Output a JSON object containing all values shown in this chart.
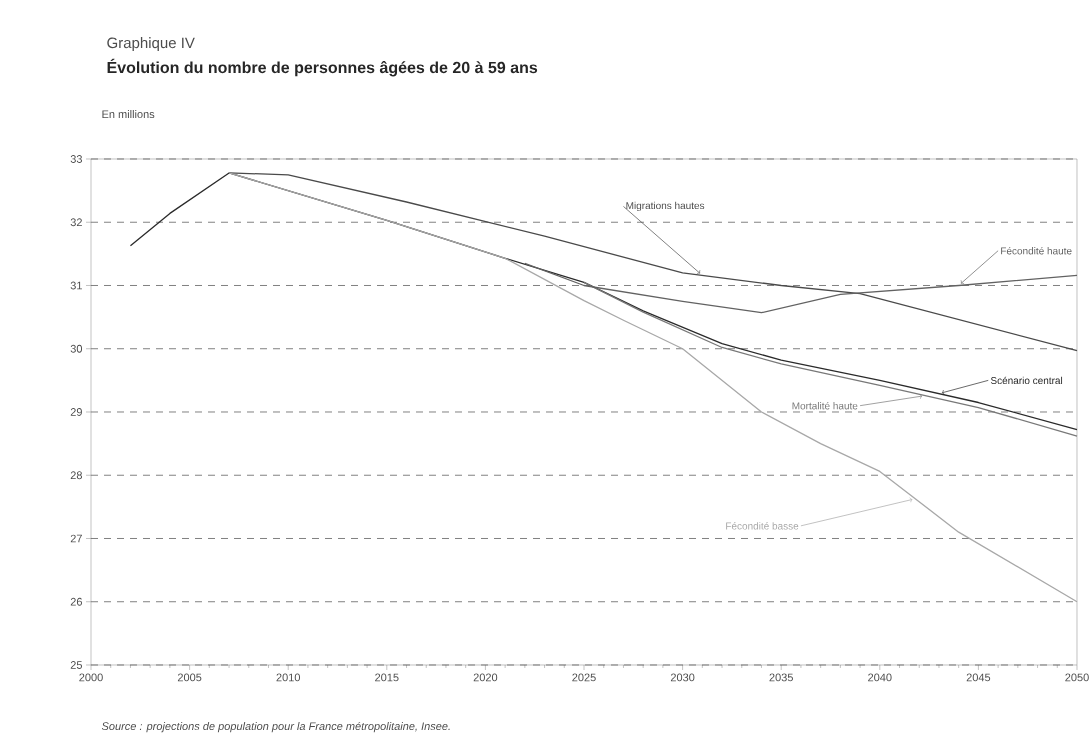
{
  "chart_data": {
    "type": "line",
    "subtitle": "Graphique IV",
    "title": "Évolution du nombre de personnes âgées de 20 à 59 ans",
    "ylabel": "En millions",
    "xlim": [
      2000,
      2050
    ],
    "xticks": [
      2000,
      2005,
      2010,
      2015,
      2020,
      2025,
      2030,
      2035,
      2040,
      2045,
      2050
    ],
    "ylim": [
      25,
      33
    ],
    "yticks": [
      25,
      26,
      27,
      28,
      29,
      30,
      31,
      32,
      33
    ],
    "grid": "y",
    "line_style": "solid",
    "series": [
      {
        "name": "Scénario central",
        "color": "#2a2a2a",
        "x": [
          2002,
          2004,
          2007,
          2015,
          2021,
          2025,
          2028,
          2032,
          2035,
          2040,
          2045,
          2050
        ],
        "values": [
          31.63,
          32.14,
          32.78,
          32.03,
          31.43,
          31.05,
          30.6,
          30.08,
          29.82,
          29.5,
          29.15,
          28.72
        ]
      },
      {
        "name": "Mortalité haute",
        "color": "#787878",
        "x": [
          2025,
          2028,
          2032,
          2035,
          2040,
          2045,
          2050
        ],
        "values": [
          31.05,
          30.58,
          30.02,
          29.76,
          29.42,
          29.07,
          28.62
        ]
      },
      {
        "name": "Migrations hautes",
        "color": "#4a4a4a",
        "x": [
          2007,
          2010,
          2016,
          2023,
          2030,
          2035,
          2039,
          2050
        ],
        "values": [
          32.78,
          32.75,
          32.32,
          31.78,
          31.2,
          31.0,
          30.87,
          29.97
        ]
      },
      {
        "name": "Fécondité haute",
        "color": "#626262",
        "x": [
          2022,
          2025,
          2030,
          2034,
          2038,
          2044,
          2050
        ],
        "values": [
          31.35,
          31.0,
          30.75,
          30.57,
          30.86,
          31.0,
          31.16
        ]
      },
      {
        "name": "Fécondité basse",
        "color": "#a8a8a8",
        "x": [
          2007,
          2015,
          2021,
          2025,
          2027,
          2030,
          2034,
          2037,
          2040,
          2044,
          2050
        ],
        "values": [
          32.78,
          32.03,
          31.43,
          30.76,
          30.45,
          30.0,
          29.0,
          28.5,
          28.06,
          27.1,
          26.0
        ]
      }
    ],
    "annotations": [
      "Source : projections de population pour la France métropolitaine, Insee."
    ]
  }
}
